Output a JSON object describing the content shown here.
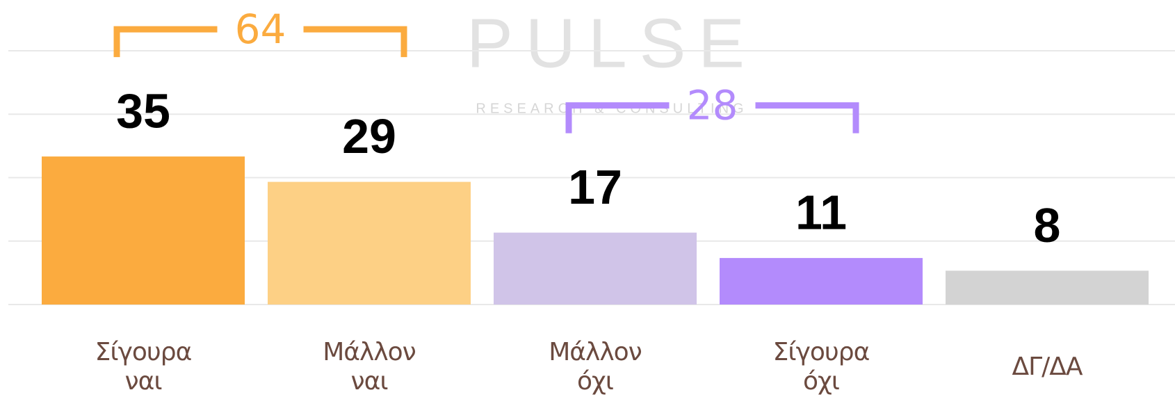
{
  "chart_data": {
    "type": "bar",
    "categories": [
      "Σίγουρα ναι",
      "Μάλλον ναι",
      "Μάλλον όχι",
      "Σίγουρα όχι",
      "ΔΓ/ΔΑ"
    ],
    "values": [
      35,
      29,
      17,
      11,
      8
    ],
    "colors": [
      "#fbab3f",
      "#fdd085",
      "#d0c4e8",
      "#b38bfc",
      "#d3d3d3"
    ],
    "ylim": [
      0,
      60
    ],
    "grid_values": [
      0,
      15,
      30,
      45,
      60
    ],
    "annotations": [
      {
        "label": "64",
        "color": "#fbab3f"
      },
      {
        "label": "28",
        "color": "#b38bfc"
      }
    ],
    "watermark": "PULSE",
    "watermark_sub": "RESEARCH & CONSULTING"
  }
}
